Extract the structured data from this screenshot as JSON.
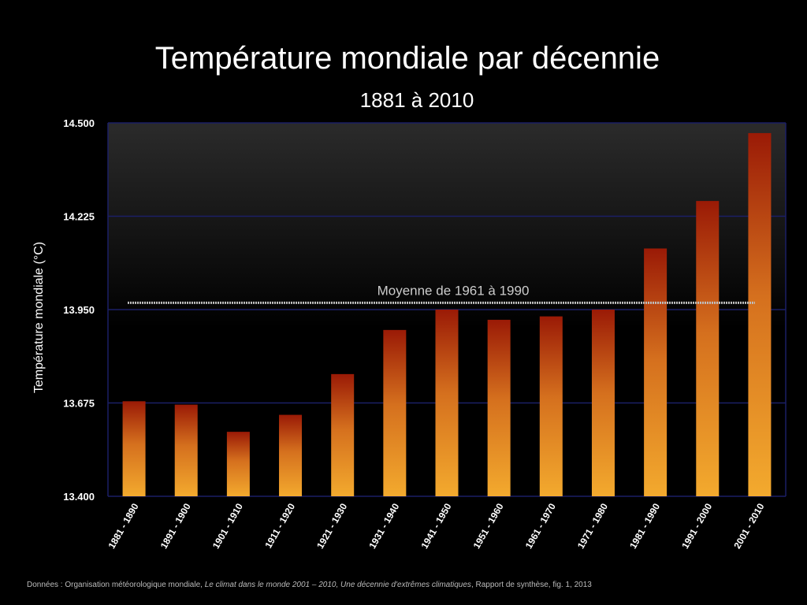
{
  "chart_data": {
    "type": "bar",
    "title": "Température mondiale par décennie",
    "subtitle": "1881 à 2010",
    "ylabel": "Température mondiale (°C)",
    "xlabel": "",
    "ylim": [
      13.4,
      14.5
    ],
    "yticks": [
      "14.500",
      "14.225",
      "13.950",
      "13.675",
      "13.400"
    ],
    "ytick_values": [
      14.5,
      14.225,
      13.95,
      13.675,
      13.4
    ],
    "categories": [
      "1881 - 1890",
      "1891 - 1900",
      "1901 - 1910",
      "1911 - 1920",
      "1921 - 1930",
      "1931 - 1940",
      "1941 - 1950",
      "1951 - 1960",
      "1961 - 1970",
      "1971 - 1980",
      "1981 - 1990",
      "1991 - 2000",
      "2001 - 2010"
    ],
    "values": [
      13.68,
      13.67,
      13.59,
      13.64,
      13.76,
      13.89,
      13.95,
      13.92,
      13.93,
      13.95,
      14.13,
      14.27,
      14.47
    ],
    "reference_line": {
      "label": "Moyenne de 1961 à 1990",
      "value": 13.97
    },
    "grid": true,
    "colors": {
      "bar_top": "#9a1a06",
      "bar_bottom": "#f3aa2e",
      "grid": "#1b1f66",
      "axis_text": "#ffffff"
    }
  },
  "source": {
    "prefix": "Données : Organisation météorologique mondiale, ",
    "italic": "Le climat dans le monde 2001 – 2010, Une décennie d'extrêmes climatiques",
    "suffix": ", Rapport de synthèse, fig. 1, 2013"
  }
}
